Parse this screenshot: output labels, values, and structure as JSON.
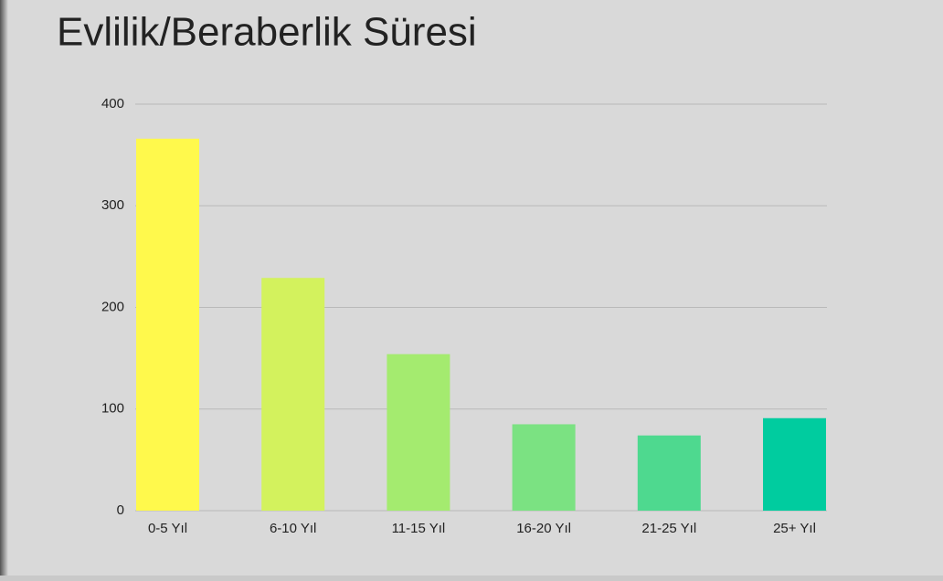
{
  "chart_data": {
    "type": "bar",
    "title": "Evlilik/Beraberlik Süresi",
    "categories": [
      "0-5 Yıl",
      "6-10 Yıl",
      "11-15 Yıl",
      "16-20 Yıl",
      "21-25 Yıl",
      "25+ Yıl"
    ],
    "values": [
      366,
      229,
      154,
      85,
      74,
      91
    ],
    "colors": [
      "#fff94c",
      "#d3f25d",
      "#a4eb6f",
      "#7be282",
      "#4ed98f",
      "#00cc9f"
    ],
    "ylim": [
      0,
      400
    ],
    "yticks": [
      0,
      100,
      200,
      300,
      400
    ],
    "grid": true
  }
}
